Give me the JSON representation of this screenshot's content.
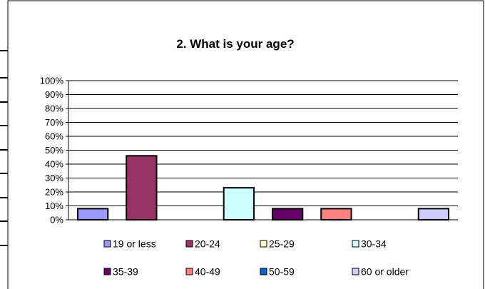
{
  "chart_data": {
    "type": "bar",
    "title": "2. What is your age?",
    "xlabel": "",
    "ylabel": "",
    "ylim": [
      0,
      100
    ],
    "yticks": [
      "0%",
      "10%",
      "20%",
      "30%",
      "40%",
      "50%",
      "60%",
      "70%",
      "80%",
      "90%",
      "100%"
    ],
    "grid": true,
    "legend_position": "bottom",
    "categories": [
      "19 or less",
      "20-24",
      "25-29",
      "30-34",
      "35-39",
      "40-49",
      "50-59",
      "60 or older"
    ],
    "values": [
      8,
      46,
      0,
      23,
      8,
      8,
      0,
      8
    ],
    "colors": [
      "#9999ff",
      "#993366",
      "#ffffcc",
      "#ccffff",
      "#660066",
      "#ff8080",
      "#0066cc",
      "#ccccff"
    ]
  }
}
